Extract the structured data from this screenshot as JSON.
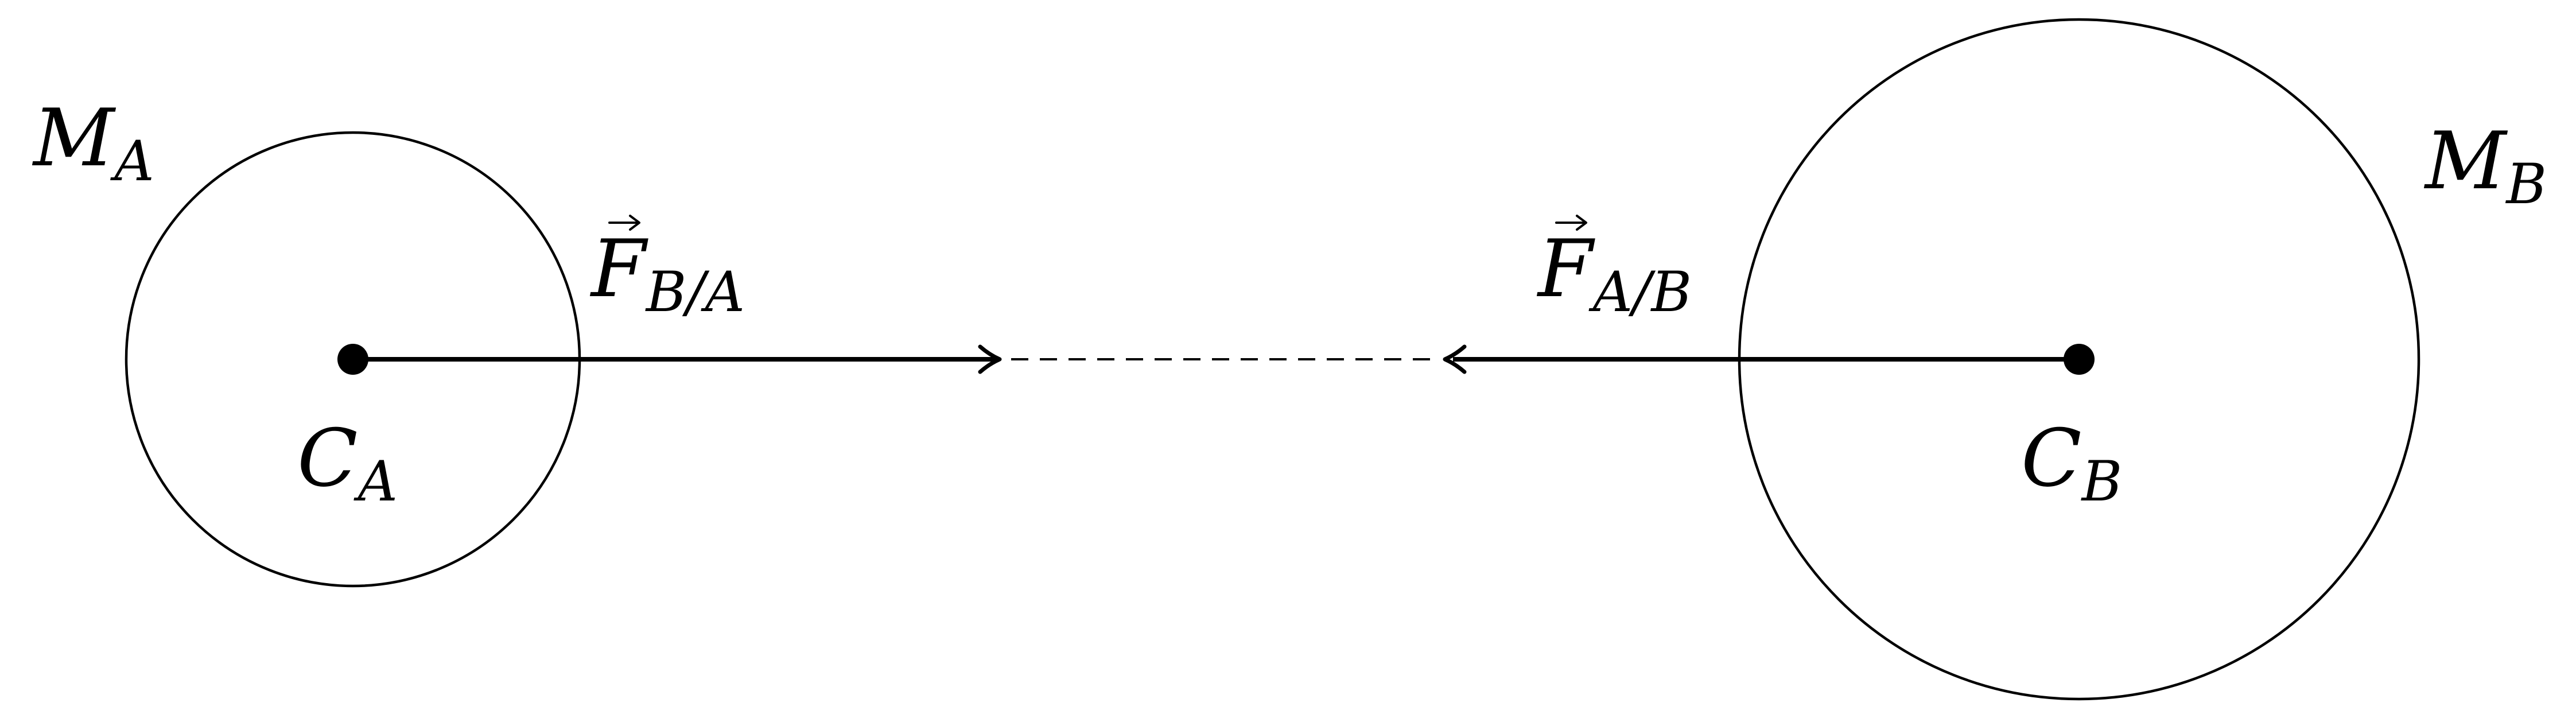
{
  "body_a": {
    "mass_symbol": "M",
    "mass_subscript": "A",
    "center_symbol": "C",
    "center_subscript": "A"
  },
  "body_b": {
    "mass_symbol": "M",
    "mass_subscript": "B",
    "center_symbol": "C",
    "center_subscript": "B"
  },
  "force_on_a": {
    "symbol": "F",
    "subscript": "B/A"
  },
  "force_on_b": {
    "symbol": "F",
    "subscript": "A/B"
  },
  "colors": {
    "stroke": "#000000",
    "background": "#ffffff"
  }
}
